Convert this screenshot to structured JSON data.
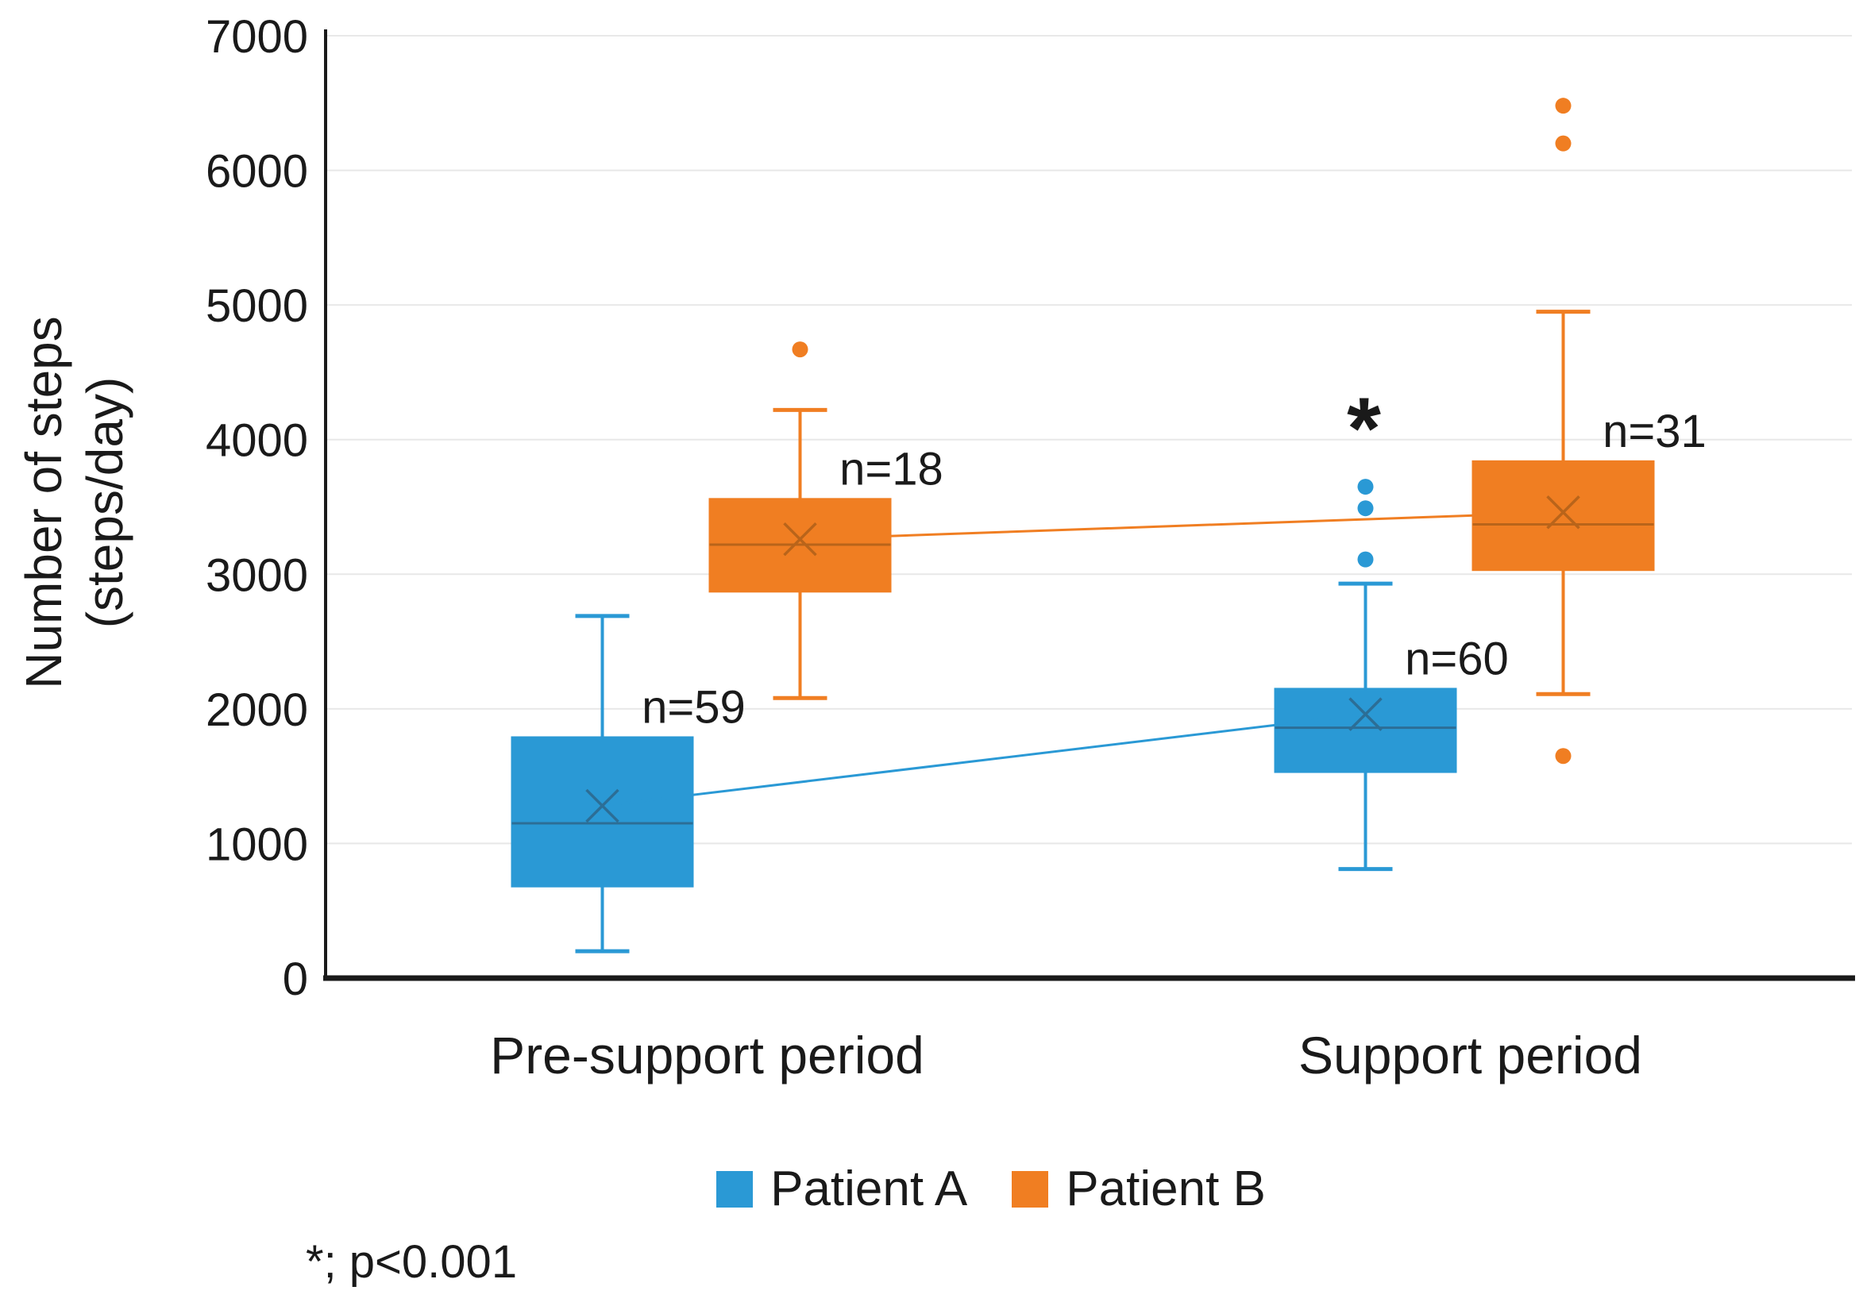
{
  "y_axis": {
    "title_line1": "Number of steps",
    "title_line2": "(steps/day)",
    "ticks": [
      0,
      1000,
      2000,
      3000,
      4000,
      5000,
      6000,
      7000
    ]
  },
  "x_axis": {
    "categories": [
      "Pre-support period",
      "Support period"
    ]
  },
  "legend": {
    "items": [
      {
        "label": "Patient A",
        "color": "#2A99D5"
      },
      {
        "label": "Patient B",
        "color": "#F07E22"
      }
    ]
  },
  "footnote": {
    "text": "*; p<0.001"
  },
  "colors": {
    "patient_a": "#2A99D5",
    "patient_a_dark": "#2C6E96",
    "patient_b": "#F07E22",
    "patient_b_dark": "#B9641A",
    "gridline": "#E8E8E8",
    "axis": "#1a1a1a"
  },
  "chart_data": {
    "type": "box",
    "title": "",
    "xlabel": "",
    "ylabel": "Number of steps (steps/day)",
    "ylim": [
      0,
      7000
    ],
    "grid": "horizontal",
    "legend_position": "bottom",
    "categories": [
      "Pre-support period",
      "Support period"
    ],
    "mean_connector_lines": true,
    "series": [
      {
        "name": "Patient A",
        "color": "#2A99D5",
        "dark_color": "#2C6E96",
        "boxes": [
          {
            "category": "Pre-support period",
            "n_label": "n=59",
            "min": 200,
            "q1": 680,
            "median": 1150,
            "mean": 1280,
            "q3": 1790,
            "max": 2690,
            "outliers": [],
            "significance": ""
          },
          {
            "category": "Support period",
            "n_label": "n=60",
            "min": 810,
            "q1": 1530,
            "median": 1860,
            "mean": 1960,
            "q3": 2150,
            "max": 2930,
            "outliers": [
              3110,
              3490,
              3650
            ],
            "significance": "*"
          }
        ]
      },
      {
        "name": "Patient B",
        "color": "#F07E22",
        "dark_color": "#B9641A",
        "boxes": [
          {
            "category": "Pre-support period",
            "n_label": "n=18",
            "min": 2080,
            "q1": 2870,
            "median": 3220,
            "mean": 3260,
            "q3": 3560,
            "max": 4220,
            "outliers": [
              4670
            ],
            "significance": ""
          },
          {
            "category": "Support period",
            "n_label": "n=31",
            "min": 2110,
            "q1": 3030,
            "median": 3370,
            "mean": 3460,
            "q3": 3840,
            "max": 4950,
            "outliers": [
              1650,
              6200,
              6480
            ],
            "significance": ""
          }
        ]
      }
    ]
  }
}
